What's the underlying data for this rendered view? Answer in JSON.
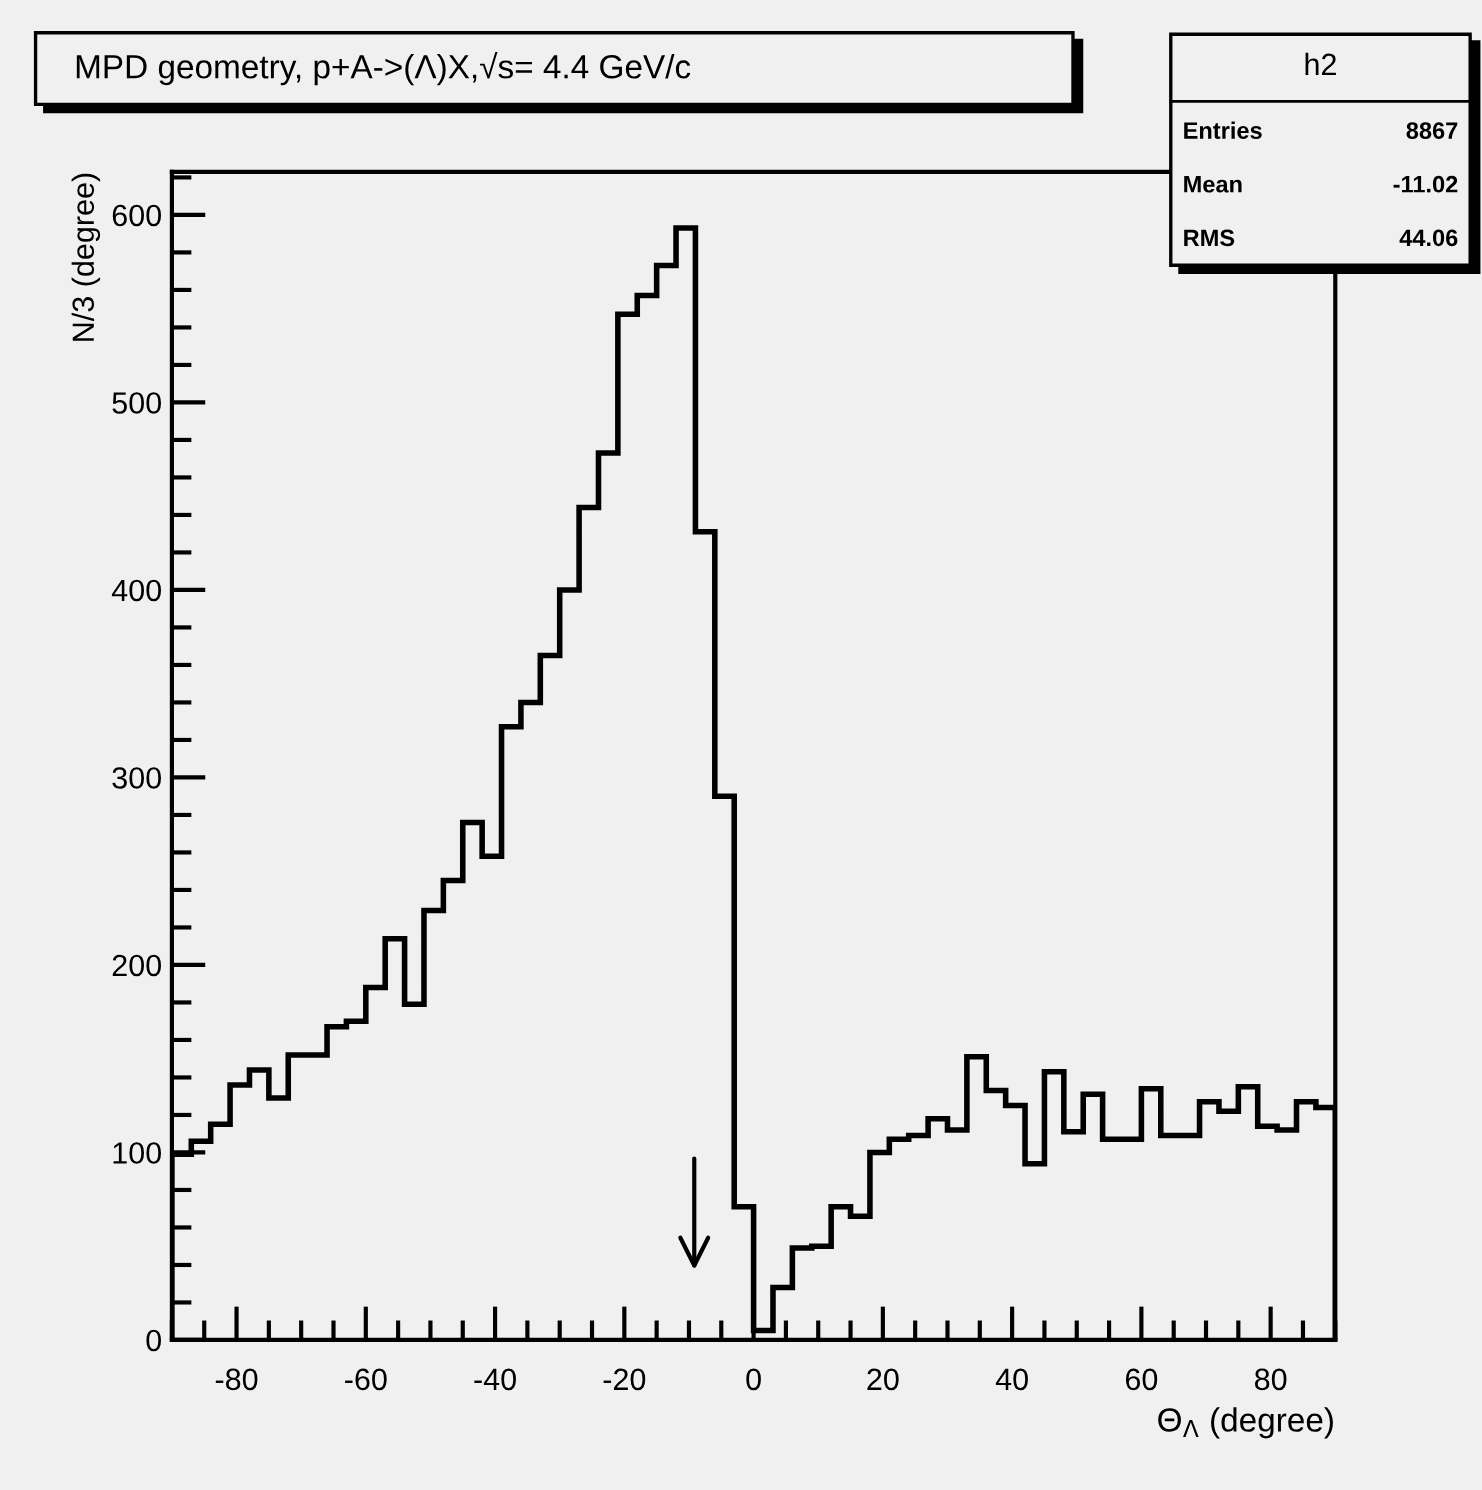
{
  "chart_data": {
    "type": "histogram",
    "title": "MPD geometry, p+A->(Λ)X,√s= 4.4 GeV/c",
    "xlabel": "Θ$_{Λ}$ (degree)",
    "ylabel": "N/3 (degree)",
    "bins": [
      -90,
      -87,
      -84,
      -81,
      -78,
      -75,
      -72,
      -69,
      -66,
      -63,
      -60,
      -57,
      -54,
      -51,
      -48,
      -45,
      -42,
      -39,
      -36,
      -33,
      -30,
      -27,
      -24,
      -21,
      -18,
      -15,
      -12,
      -9,
      -6,
      -3,
      0,
      3,
      6,
      9,
      12,
      15,
      18,
      21,
      24,
      27,
      30,
      33,
      36,
      39,
      42,
      45,
      48,
      51,
      54,
      57,
      60,
      63,
      66,
      69,
      72,
      75,
      78,
      81,
      84,
      87,
      90
    ],
    "values": [
      99,
      106,
      115,
      136,
      144,
      129,
      152,
      152,
      167,
      170,
      188,
      214,
      179,
      229,
      245,
      276,
      258,
      327,
      340,
      365,
      400,
      444,
      473,
      547,
      557,
      573,
      593,
      431,
      290,
      71,
      5,
      28,
      49,
      50,
      71,
      66,
      100,
      107,
      109,
      118,
      112,
      151,
      133,
      125,
      94,
      143,
      111,
      131,
      107,
      107,
      134,
      109,
      109,
      127,
      122,
      135,
      114,
      112,
      127,
      124
    ],
    "color": "#000000",
    "xlim": [
      -90,
      90
    ],
    "ylim": [
      0,
      623
    ],
    "xticks": [
      -80,
      -60,
      -40,
      -20,
      0,
      20,
      40,
      60,
      80
    ],
    "yticks": [
      0,
      100,
      200,
      300,
      400,
      500,
      600
    ],
    "grid": false,
    "annotations": [
      "h2",
      "Entries",
      "8867",
      "Mean",
      "-11.02",
      "RMS",
      "44.06"
    ]
  }
}
